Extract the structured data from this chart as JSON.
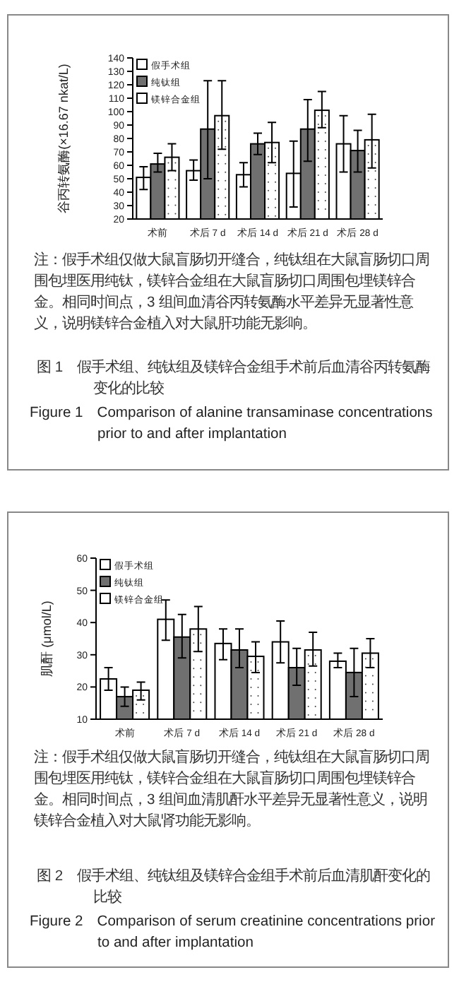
{
  "chart_data": [
    {
      "type": "bar",
      "title": "图 1　假手术组、纯钛组及镁锌合金组手术前后血清谷丙转氨酶变化的比较",
      "subtitle": "Figure 1　Comparison of alanine transaminase concentrations prior to and after implantation",
      "ylabel": "谷丙转氨酶(×16.67 nkat/L)",
      "annotations": [
        "注：假手术组仅做大鼠盲肠切开缝合，纯钛组在大鼠盲肠切口周围包埋医用纯钛，镁锌合金组在大鼠盲肠切口周围包埋镁锌合金。相同时间点，3 组间血清谷丙转氨酶水平差异无显著性意义，说明镁锌合金植入对大鼠肝功能无影响。"
      ],
      "categories": [
        "术前",
        "术后 7 d",
        "术后 14 d",
        "术后 21 d",
        "术后 28 d"
      ],
      "ylim": [
        20,
        140
      ],
      "yticks": [
        20,
        30,
        40,
        50,
        60,
        70,
        80,
        90,
        100,
        110,
        120,
        130,
        140
      ],
      "legend": "top left",
      "grid": false,
      "series": [
        {
          "name": "假手术组",
          "color": "#ffffff",
          "values": [
            51,
            56,
            53,
            54,
            76
          ],
          "errors": [
            [
              42,
              59
            ],
            [
              49,
              64
            ],
            [
              44,
              62
            ],
            [
              29,
              78
            ],
            [
              55,
              97
            ]
          ]
        },
        {
          "name": "纯钛组",
          "color": "#707070",
          "values": [
            61,
            87,
            76,
            87,
            71
          ],
          "errors": [
            [
              55,
              69
            ],
            [
              50,
              123
            ],
            [
              68,
              84
            ],
            [
              63,
              109
            ],
            [
              55,
              86
            ]
          ]
        },
        {
          "name": "镁锌合金组",
          "color": "#ffffff",
          "values": [
            66,
            97,
            77,
            101,
            79
          ],
          "errors": [
            [
              56,
              76
            ],
            [
              72,
              123
            ],
            [
              62,
              92
            ],
            [
              88,
              115
            ],
            [
              58,
              98
            ]
          ]
        }
      ]
    },
    {
      "type": "bar",
      "title": "图 2　假手术组、纯钛组及镁锌合金组手术前后血清肌酐变化的比较",
      "subtitle": "Figure 2　Comparison of serum creatinine concentrations prior to and after implantation",
      "ylabel": "肌酐 (μmol/L)",
      "annotations": [
        "注：假手术组仅做大鼠盲肠切开缝合，纯钛组在大鼠盲肠切口周围包埋医用纯钛，镁锌合金组在大鼠盲肠切口周围包埋镁锌合金。相同时间点，3 组间血清肌酐水平差异无显著性意义，说明镁锌合金植入对大鼠肾功能无影响。"
      ],
      "categories": [
        "术前",
        "术后 7 d",
        "术后 14 d",
        "术后 21 d",
        "术后 28 d"
      ],
      "ylim": [
        10,
        60
      ],
      "yticks": [
        10,
        20,
        30,
        40,
        50,
        60
      ],
      "legend": "top left",
      "grid": false,
      "series": [
        {
          "name": "假手术组",
          "color": "#ffffff",
          "values": [
            22.5,
            41,
            33.5,
            34,
            28
          ],
          "errors": [
            [
              19,
              26
            ],
            [
              34.5,
              47
            ],
            [
              28.5,
              38
            ],
            [
              27.5,
              40.5
            ],
            [
              26,
              30.5
            ]
          ]
        },
        {
          "name": "纯钛组",
          "color": "#707070",
          "values": [
            17,
            35.5,
            31.5,
            26,
            24.5
          ],
          "errors": [
            [
              14,
              20
            ],
            [
              29,
              42.5
            ],
            [
              26,
              38
            ],
            [
              20.5,
              32
            ],
            [
              17,
              32
            ]
          ]
        },
        {
          "name": "镁锌合金组",
          "color": "#ffffff",
          "values": [
            19,
            38,
            29.5,
            31.5,
            30.5
          ],
          "errors": [
            [
              16,
              21.5
            ],
            [
              31,
              45
            ],
            [
              24.5,
              34
            ],
            [
              26.5,
              37
            ],
            [
              26,
              35
            ]
          ]
        }
      ]
    }
  ]
}
